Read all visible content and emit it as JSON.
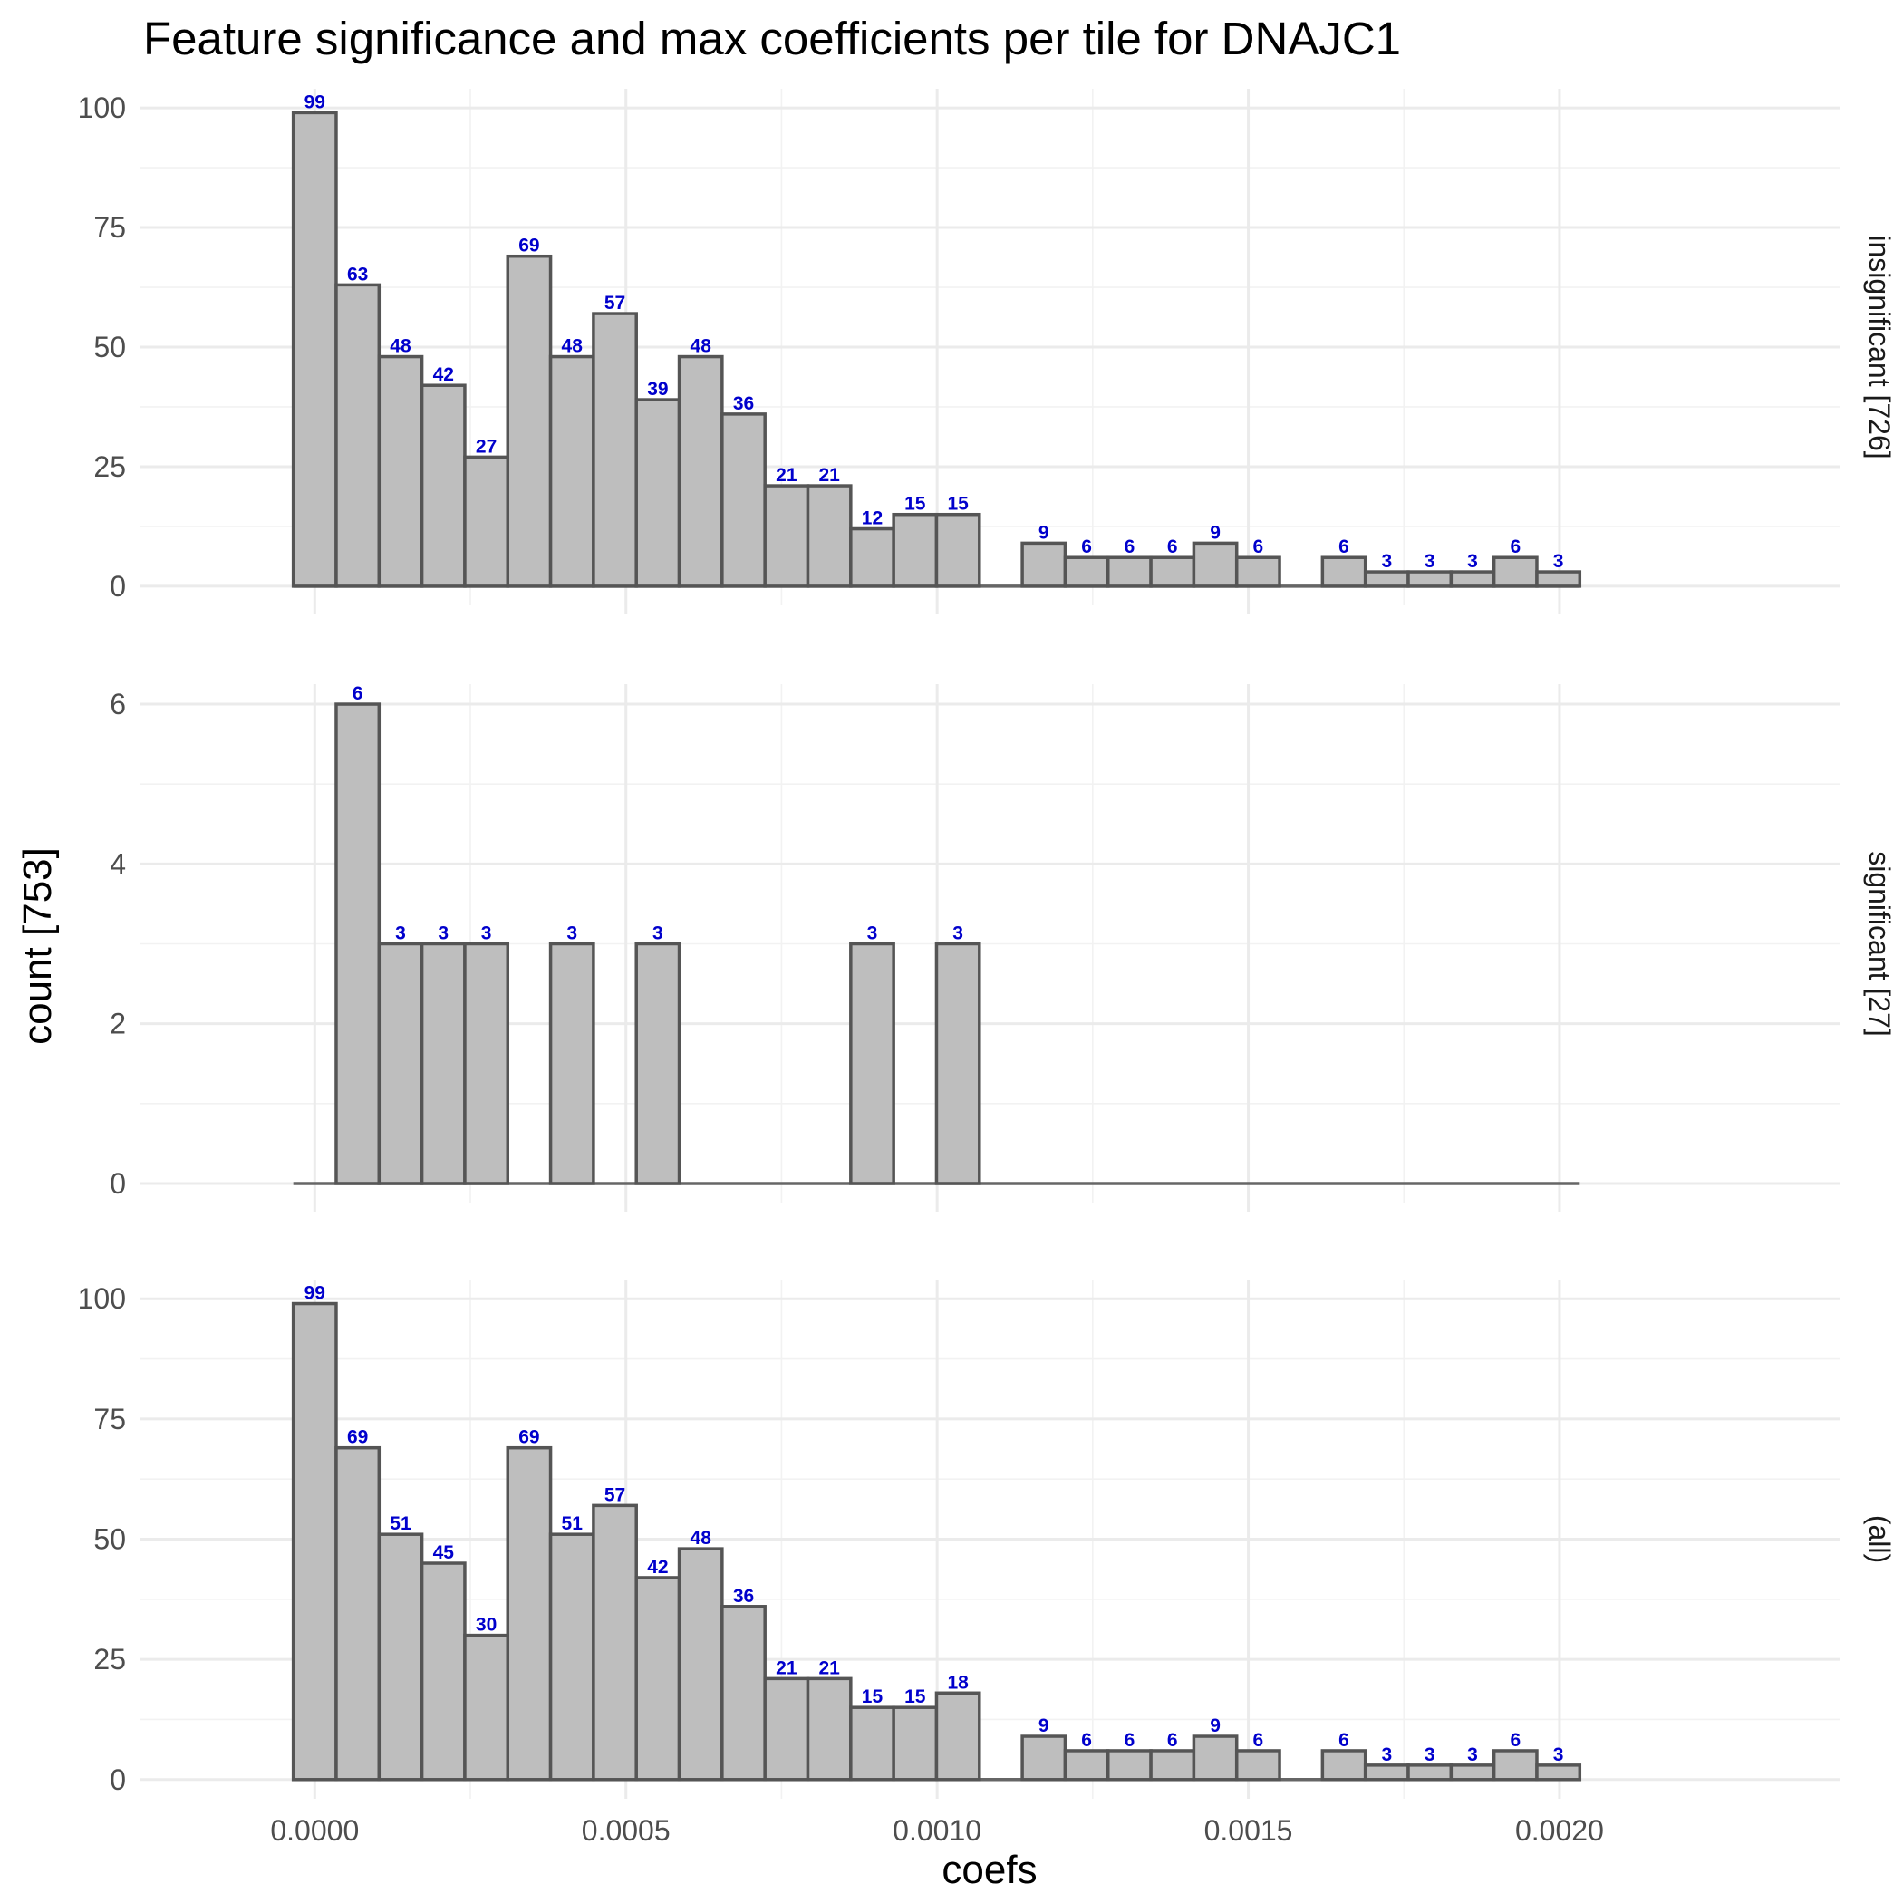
{
  "chart_data": {
    "type": "bar",
    "subtype": "faceted histogram",
    "title": "Feature significance and max coefficients per tile for DNAJC1",
    "xlabel": "coefs",
    "ylabel": "count [753]",
    "bin_width": 6.89e-05,
    "bin_centers_first": 0.0,
    "x_range": [
      -0.00028,
      0.00245
    ],
    "x_ticks": [
      "0.0000",
      "0.0005",
      "0.0010",
      "0.0015",
      "0.0020"
    ],
    "x_tick_values": [
      0.0,
      0.0005,
      0.001,
      0.0015,
      0.002
    ],
    "bar_color": "#bebebe",
    "label_color": "#0000cc",
    "panels": [
      {
        "strip": "insignificant [726]",
        "y_range": [
          -4,
          104
        ],
        "y_ticks": [
          0,
          25,
          50,
          75,
          100
        ],
        "values": [
          99,
          63,
          48,
          42,
          27,
          69,
          48,
          57,
          39,
          48,
          36,
          21,
          21,
          12,
          15,
          15,
          0,
          9,
          6,
          6,
          6,
          9,
          6,
          0,
          6,
          3,
          3,
          3,
          6,
          3
        ]
      },
      {
        "strip": "significant [27]",
        "y_range": [
          -0.25,
          6.25
        ],
        "y_ticks": [
          0,
          2,
          4,
          6
        ],
        "values": [
          0,
          6,
          3,
          3,
          3,
          0,
          3,
          0,
          3,
          0,
          0,
          0,
          0,
          3,
          0,
          3,
          0,
          0,
          0,
          0,
          0,
          0,
          0,
          0,
          0,
          0,
          0,
          0,
          0,
          0
        ]
      },
      {
        "strip": "(all)",
        "y_range": [
          -4,
          104
        ],
        "y_ticks": [
          0,
          25,
          50,
          75,
          100
        ],
        "values": [
          99,
          69,
          51,
          45,
          30,
          69,
          51,
          57,
          42,
          48,
          36,
          21,
          21,
          15,
          15,
          18,
          0,
          9,
          6,
          6,
          6,
          9,
          6,
          0,
          6,
          3,
          3,
          3,
          6,
          3
        ]
      }
    ]
  }
}
